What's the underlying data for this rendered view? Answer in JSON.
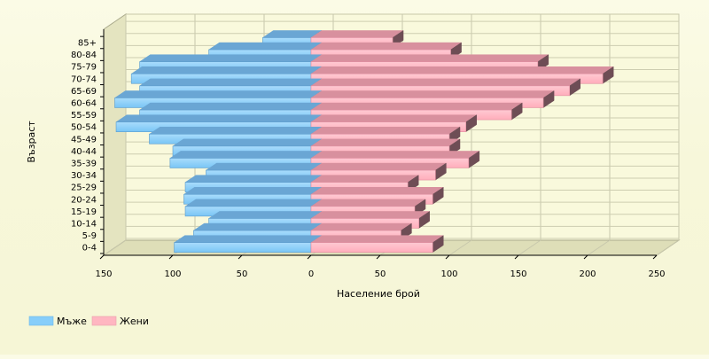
{
  "chart_data": {
    "type": "bar",
    "orientation": "horizontal",
    "subtype": "population-pyramid",
    "xlabel": "Население брой",
    "ylabel": "Възраст",
    "xlim": [
      -150,
      250
    ],
    "xticks": [
      "150",
      "100",
      "50",
      "0",
      "50",
      "100",
      "150",
      "200",
      "250"
    ],
    "grid": true,
    "legend_position": "bottom-left",
    "categories": [
      "0-4",
      "5-9",
      "10-14",
      "15-19",
      "20-24",
      "25-29",
      "30-34",
      "35-39",
      "40-44",
      "45-49",
      "50-54",
      "55-59",
      "60-64",
      "65-69",
      "70-74",
      "75-79",
      "80-84",
      "85+"
    ],
    "series": [
      {
        "name": "Мъже",
        "color": "#87cefa",
        "values": [
          -99,
          -85,
          -74,
          -91,
          -92,
          -91,
          -76,
          -102,
          -100,
          -117,
          -141,
          -124,
          -142,
          -124,
          -130,
          -124,
          -74,
          -35
        ]
      },
      {
        "name": "Жени",
        "color": "#ffb6c1",
        "values": [
          88,
          65,
          78,
          75,
          88,
          70,
          90,
          114,
          100,
          100,
          112,
          145,
          168,
          187,
          211,
          164,
          101,
          59
        ]
      }
    ]
  }
}
